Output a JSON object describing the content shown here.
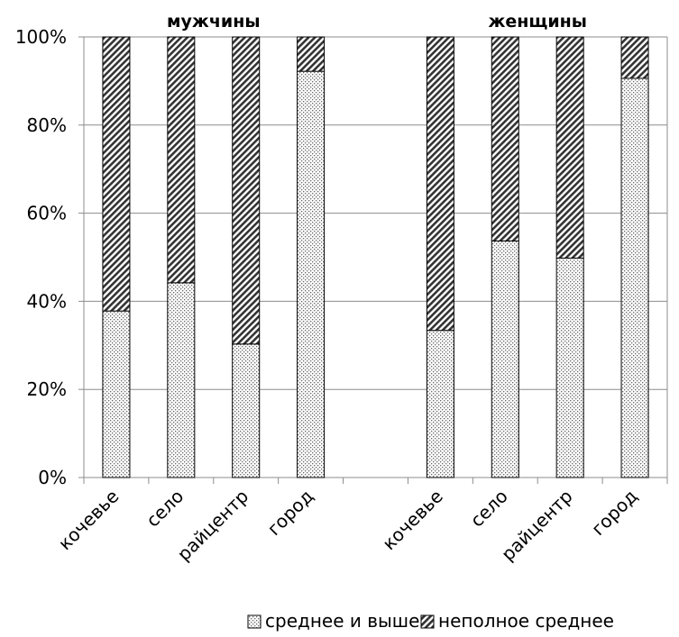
{
  "chart_data": {
    "type": "bar",
    "stacked": true,
    "percent_stacked": true,
    "group_labels": [
      "мужчины",
      "женщины"
    ],
    "categories": [
      "кочевье",
      "село",
      "райцентр",
      "город",
      "",
      "кочевье",
      "село",
      "райцентр",
      "город"
    ],
    "series": [
      {
        "name": "среднее и выше",
        "values": [
          37.8,
          44.2,
          30.3,
          92.2,
          null,
          33.4,
          53.7,
          49.8,
          90.6
        ],
        "pattern": "dots"
      },
      {
        "name": "неполное среднее",
        "values": [
          62.2,
          55.8,
          69.7,
          7.8,
          null,
          66.6,
          46.3,
          50.2,
          9.4
        ],
        "pattern": "diagonal-hatch"
      }
    ],
    "y_ticks": [
      "0%",
      "20%",
      "40%",
      "60%",
      "80%",
      "100%"
    ],
    "ylim": [
      0,
      100
    ],
    "grid": true,
    "legend_position": "bottom"
  }
}
